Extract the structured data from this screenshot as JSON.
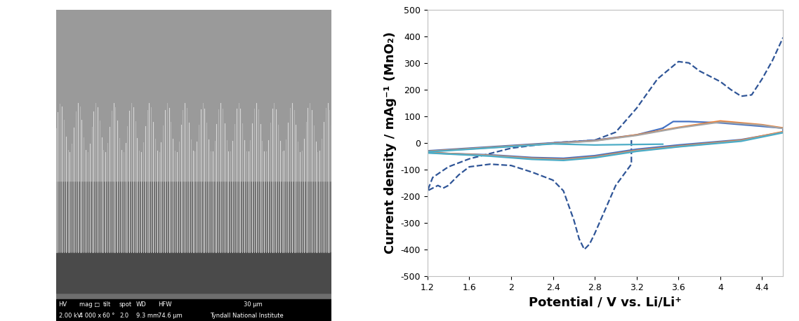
{
  "chart_data": {
    "type": "line",
    "x_label": "Potential / V vs. Li/Li⁺",
    "y_label": "Current density / mAg⁻¹ (MnO₂)",
    "xlim": [
      1.2,
      4.6
    ],
    "xticks": [
      1.2,
      1.6,
      2,
      2.4,
      2.8,
      3.2,
      3.6,
      4,
      4.4
    ],
    "ylim": [
      -500,
      500
    ],
    "yticks": [
      -500,
      -400,
      -300,
      -200,
      -100,
      0,
      100,
      200,
      300,
      400,
      500
    ],
    "grid": false,
    "series": [
      {
        "color": "#2f5597",
        "line_style": "dashed",
        "x": [
          3.15,
          3.15,
          3.0,
          2.9,
          2.8,
          2.75,
          2.7,
          2.65,
          2.6,
          2.5,
          2.4,
          2.2,
          2.0,
          1.8,
          1.6,
          1.5,
          1.4,
          1.35,
          1.3,
          1.2,
          1.25,
          1.4,
          1.6,
          2.0,
          2.4,
          2.8,
          3.0,
          3.2,
          3.4,
          3.6,
          3.7,
          3.8,
          4.0,
          4.1,
          4.2,
          4.3,
          4.4,
          4.5,
          4.6
        ],
        "values": [
          10,
          -80,
          -160,
          -250,
          -340,
          -380,
          -400,
          -360,
          -290,
          -180,
          -140,
          -110,
          -85,
          -80,
          -90,
          -120,
          -160,
          -170,
          -160,
          -180,
          -130,
          -90,
          -60,
          -20,
          0,
          10,
          40,
          130,
          240,
          305,
          300,
          270,
          230,
          200,
          175,
          180,
          240,
          310,
          395
        ]
      },
      {
        "color": "#4472c4",
        "line_style": "solid",
        "x": [
          3.45,
          3.55,
          3.7,
          4.0,
          4.4,
          4.6,
          4.6,
          4.2,
          3.6,
          3.2,
          2.8,
          2.5,
          2.2,
          1.8,
          1.4,
          1.2,
          1.2,
          1.6,
          2.0,
          2.4,
          2.8,
          3.2,
          3.45
        ],
        "values": [
          55,
          80,
          80,
          75,
          62,
          55,
          40,
          12,
          -8,
          -24,
          -48,
          -58,
          -55,
          -45,
          -40,
          -35,
          -30,
          -20,
          -10,
          0,
          10,
          30,
          55
        ]
      },
      {
        "color": "#ed7d31",
        "line_style": "solid",
        "x": [
          4.6,
          4.2,
          3.6,
          3.2,
          2.8,
          2.5,
          2.2,
          1.8,
          1.4,
          1.2,
          1.2,
          1.6,
          2.0,
          2.4,
          2.8,
          3.2,
          3.6,
          4.0,
          4.4,
          4.6
        ],
        "values": [
          42,
          10,
          -12,
          -28,
          -52,
          -62,
          -58,
          -47,
          -40,
          -36,
          -32,
          -22,
          -12,
          -2,
          8,
          30,
          58,
          82,
          68,
          56
        ]
      },
      {
        "color": "#a5a5a5",
        "line_style": "solid",
        "x": [
          4.6,
          4.2,
          3.6,
          3.2,
          2.8,
          2.5,
          2.2,
          1.8,
          1.4,
          1.2,
          1.2,
          1.6,
          2.0,
          2.4,
          2.8,
          3.2,
          3.6,
          4.0,
          4.4,
          4.6
        ],
        "values": [
          40,
          8,
          -14,
          -30,
          -54,
          -64,
          -60,
          -48,
          -41,
          -37,
          -33,
          -23,
          -13,
          -3,
          7,
          28,
          56,
          78,
          66,
          54
        ]
      },
      {
        "color": "#4bacc6",
        "line_style": "solid",
        "x": [
          4.6,
          4.2,
          3.6,
          3.2,
          2.8,
          2.5,
          2.2,
          1.8,
          1.4,
          1.2,
          1.2,
          1.6,
          2.0,
          2.4,
          2.8,
          3.2,
          3.45
        ],
        "values": [
          38,
          6,
          -15,
          -32,
          -56,
          -66,
          -62,
          -50,
          -42,
          -38,
          -34,
          -24,
          -14,
          -4,
          -8,
          -6,
          -5
        ]
      }
    ]
  },
  "sem_image": {
    "info_bar": {
      "header": [
        "HV",
        "mag □",
        "tilt",
        "spot",
        "WD",
        "HFW",
        "30 µm"
      ],
      "values": [
        "2.00 kV",
        "4 000 x",
        "60 °",
        "2.0",
        "9.3 mm",
        "74.6 µm",
        "Tyndall National Institute"
      ]
    }
  }
}
